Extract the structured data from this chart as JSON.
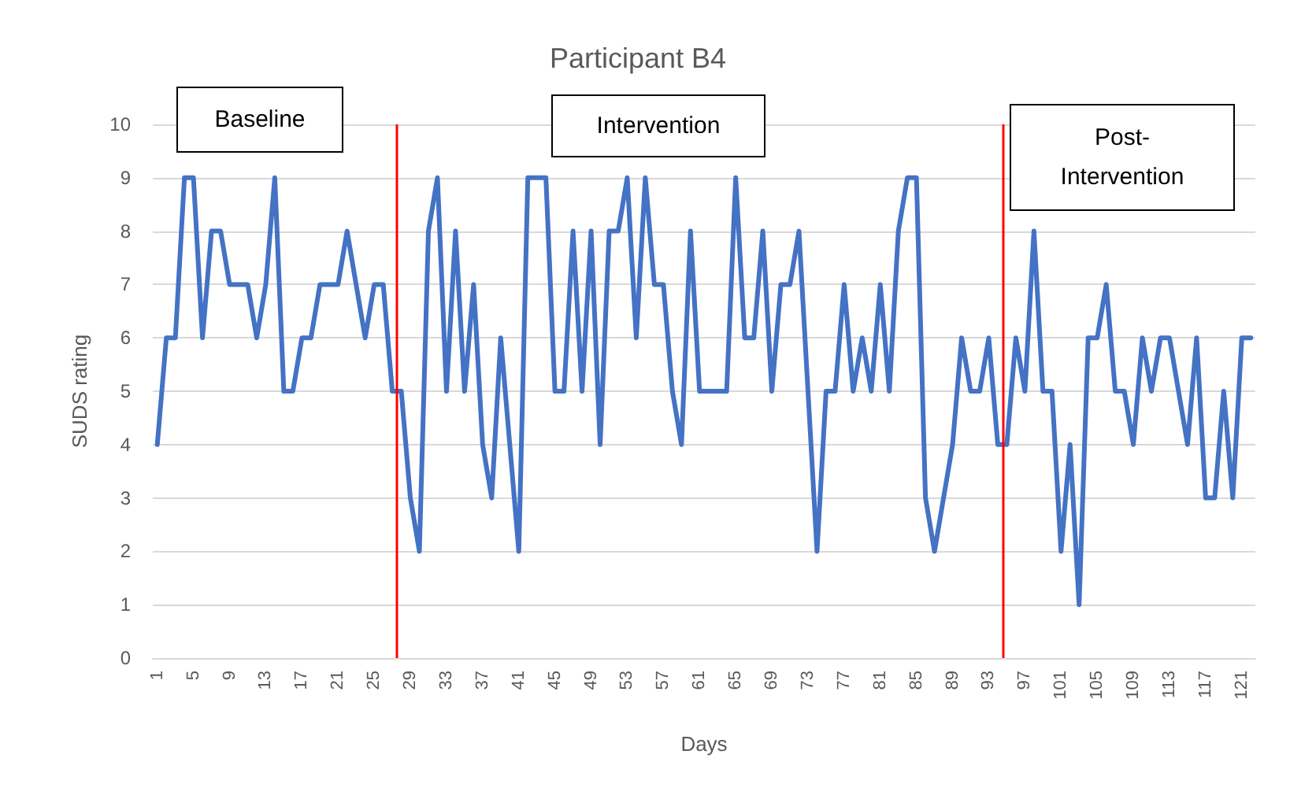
{
  "chart_data": {
    "type": "line",
    "title": "Participant B4",
    "xlabel": "Days",
    "ylabel": "SUDS rating",
    "x": [
      1,
      2,
      3,
      4,
      5,
      6,
      7,
      8,
      9,
      10,
      11,
      12,
      13,
      14,
      15,
      16,
      17,
      18,
      19,
      20,
      21,
      22,
      23,
      24,
      25,
      26,
      27,
      28,
      29,
      30,
      31,
      32,
      33,
      34,
      35,
      36,
      37,
      38,
      39,
      40,
      41,
      42,
      43,
      44,
      45,
      46,
      47,
      48,
      49,
      50,
      51,
      52,
      53,
      54,
      55,
      56,
      57,
      58,
      59,
      60,
      61,
      62,
      63,
      64,
      65,
      66,
      67,
      68,
      69,
      70,
      71,
      72,
      73,
      74,
      75,
      76,
      77,
      78,
      79,
      80,
      81,
      82,
      83,
      84,
      85,
      86,
      87,
      88,
      89,
      90,
      91,
      92,
      93,
      94,
      95,
      96,
      97,
      98,
      99,
      100,
      101,
      102,
      103,
      104,
      105,
      106,
      107,
      108,
      109,
      110,
      111,
      112,
      113,
      114,
      115,
      116,
      117,
      118,
      119,
      120,
      121,
      122
    ],
    "series": [
      {
        "color": "#4472c4",
        "values": [
          4,
          6,
          6,
          9,
          9,
          6,
          8,
          8,
          7,
          7,
          7,
          6,
          7,
          9,
          5,
          5,
          6,
          6,
          7,
          7,
          7,
          8,
          7,
          6,
          7,
          7,
          5,
          5,
          3,
          2,
          8,
          9,
          5,
          8,
          5,
          7,
          4,
          3,
          6,
          4,
          2,
          9,
          9,
          9,
          5,
          5,
          8,
          5,
          8,
          4,
          8,
          8,
          9,
          6,
          9,
          7,
          7,
          5,
          4,
          8,
          5,
          5,
          5,
          5,
          9,
          6,
          6,
          8,
          5,
          7,
          7,
          8,
          5,
          2,
          5,
          5,
          7,
          5,
          6,
          5,
          7,
          5,
          8,
          9,
          9,
          3,
          2,
          3,
          4,
          6,
          5,
          5,
          6,
          4,
          4,
          6,
          5,
          8,
          5,
          5,
          2,
          4,
          1,
          6,
          6,
          7,
          5,
          5,
          4,
          6,
          5,
          6,
          6,
          5,
          4,
          6,
          3,
          3,
          5,
          3,
          6,
          6
        ]
      }
    ],
    "xlim": [
      0.5,
      122.5
    ],
    "xticks": [
      1,
      5,
      9,
      13,
      17,
      21,
      25,
      29,
      33,
      37,
      41,
      45,
      49,
      53,
      57,
      61,
      65,
      69,
      73,
      77,
      81,
      85,
      89,
      93,
      97,
      101,
      105,
      109,
      113,
      117,
      121
    ],
    "ylim": [
      0,
      10
    ],
    "yticks": [
      0,
      1,
      2,
      3,
      4,
      5,
      6,
      7,
      8,
      9,
      10
    ],
    "grid": "y",
    "marker": "none",
    "line_style": "solid",
    "ref_lines": [
      {
        "axis": "x",
        "value": 27.5,
        "color": "#ff0000"
      },
      {
        "axis": "x",
        "value": 94.5,
        "color": "#ff0000"
      }
    ],
    "annotations": [
      "Baseline",
      "Intervention",
      "Post-\nIntervention"
    ]
  }
}
